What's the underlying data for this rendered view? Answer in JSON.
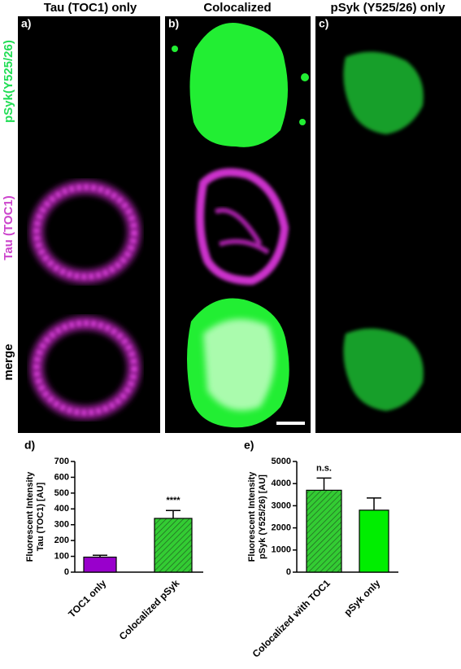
{
  "panels": {
    "column_titles": [
      "Tau (TOC1) only",
      "Colocalized",
      "pSyk (Y525/26) only"
    ],
    "panel_labels": [
      "a)",
      "b)",
      "c)"
    ],
    "row_labels": [
      "pSyk(Y525/26)",
      "Tau (TOC1)",
      "merge"
    ],
    "row_label_colors": [
      "#22dd55",
      "#cc44cc",
      "#000000"
    ]
  },
  "chart_data": [
    {
      "type": "bar",
      "panel_label": "d)",
      "ylabel": [
        "Fluorescent Intensity",
        "Tau (TOC1) [AU]"
      ],
      "categories": [
        "TOC1 only",
        "Colocalized pSyk"
      ],
      "values": [
        95,
        340
      ],
      "errors": [
        12,
        50
      ],
      "colors": [
        "#9900cc",
        "#33cc33"
      ],
      "hatched": [
        false,
        true
      ],
      "ylim": [
        0,
        700
      ],
      "yticks": [
        0,
        100,
        200,
        300,
        400,
        500,
        600,
        700
      ],
      "annotations": [
        {
          "category": "Colocalized pSyk",
          "text": "****"
        }
      ]
    },
    {
      "type": "bar",
      "panel_label": "e)",
      "ylabel": [
        "Fluorescent Intensity",
        "pSyk (Y525/26) [AU]"
      ],
      "categories": [
        "Colocalized with TOC1",
        "pSyk only"
      ],
      "values": [
        3700,
        2800
      ],
      "errors": [
        550,
        550
      ],
      "colors": [
        "#33cc33",
        "#00ee00"
      ],
      "hatched": [
        true,
        false
      ],
      "ylim": [
        0,
        5000
      ],
      "yticks": [
        0,
        1000,
        2000,
        3000,
        4000,
        5000
      ],
      "annotations": [
        {
          "category": "Colocalized with TOC1",
          "text": "n.s."
        }
      ]
    }
  ]
}
